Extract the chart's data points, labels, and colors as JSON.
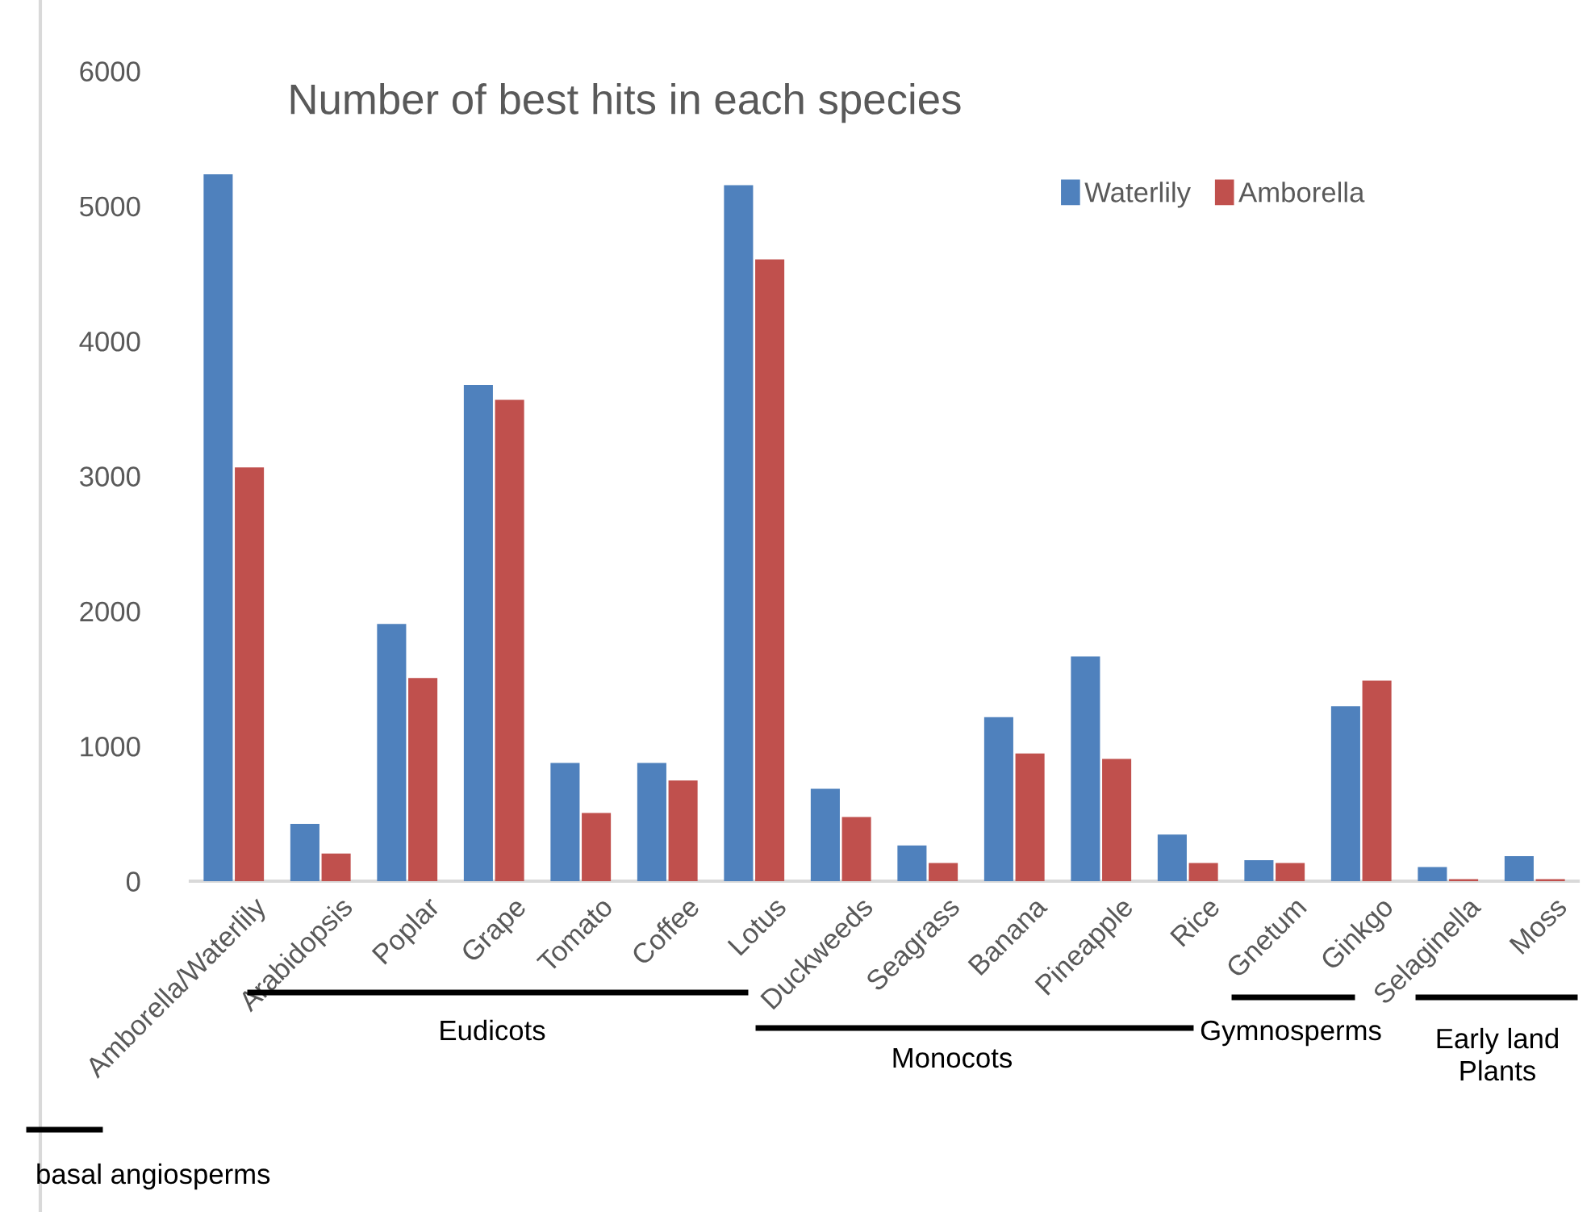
{
  "chart_data": {
    "type": "bar",
    "title": "Number of best hits in each species",
    "categories": [
      "Amborella/Waterlily",
      "Arabidopsis",
      "Poplar",
      "Grape",
      "Tomato",
      "Coffee",
      "Lotus",
      "Duckweeds",
      "Seagrass",
      "Banana",
      "Pineapple",
      "Rice",
      "Gnetum",
      "Ginkgo",
      "Selaginella",
      "Moss"
    ],
    "series": [
      {
        "name": "Waterlily",
        "color": "#4f81bd",
        "values": [
          5230,
          420,
          1900,
          3670,
          870,
          870,
          5150,
          680,
          260,
          1210,
          1660,
          340,
          150,
          1290,
          100,
          180
        ]
      },
      {
        "name": "Amborella",
        "color": "#c0504d",
        "values": [
          3060,
          200,
          1500,
          3560,
          500,
          740,
          4600,
          470,
          130,
          940,
          900,
          130,
          130,
          1480,
          10,
          10
        ]
      }
    ],
    "ylim": [
      0,
      6000
    ],
    "yticks": [
      0,
      1000,
      2000,
      3000,
      4000,
      5000,
      6000
    ],
    "grid": false,
    "legend": "top right",
    "annotations": [
      "Eudicots",
      "Monocots",
      "Gymnosperms",
      "Early land\nPlants",
      "basal angiosperms"
    ]
  }
}
